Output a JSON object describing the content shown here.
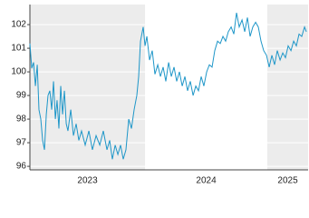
{
  "chart_data": {
    "type": "line",
    "x": [
      2023.059,
      2023.074,
      2023.089,
      2023.104,
      2023.119,
      2023.133,
      2023.148,
      2023.163,
      2023.178,
      2023.193,
      2023.207,
      2023.222,
      2023.237,
      2023.252,
      2023.267,
      2023.281,
      2023.296,
      2023.311,
      2023.326,
      2023.341,
      2023.356,
      2023.37,
      2023.393,
      2023.415,
      2023.437,
      2023.459,
      2023.481,
      2023.511,
      2023.541,
      2023.57,
      2023.6,
      2023.63,
      2023.659,
      2023.689,
      2023.711,
      2023.733,
      2023.756,
      2023.778,
      2023.8,
      2023.822,
      2023.844,
      2023.867,
      2023.889,
      2023.911,
      2023.933,
      2023.948,
      2023.963,
      2023.985,
      2024.0,
      2024.015,
      2024.037,
      2024.059,
      2024.081,
      2024.104,
      2024.126,
      2024.148,
      2024.17,
      2024.193,
      2024.215,
      2024.237,
      2024.259,
      2024.281,
      2024.304,
      2024.326,
      2024.348,
      2024.37,
      2024.393,
      2024.415,
      2024.437,
      2024.459,
      2024.481,
      2024.504,
      2024.526,
      2024.548,
      2024.57,
      2024.593,
      2024.615,
      2024.637,
      2024.659,
      2024.681,
      2024.704,
      2024.726,
      2024.748,
      2024.77,
      2024.793,
      2024.815,
      2024.837,
      2024.859,
      2024.881,
      2024.904,
      2024.926,
      2024.948,
      2024.97,
      2024.993,
      2025.015,
      2025.037,
      2025.059,
      2025.081,
      2025.104,
      2025.126,
      2025.148,
      2025.17,
      2025.193,
      2025.215,
      2025.237,
      2025.259,
      2025.281,
      2025.304,
      2025.319
    ],
    "series": [
      {
        "color": "#1e96c8",
        "values": [
          101.2,
          100.15,
          100.4,
          99.4,
          100.3,
          98.4,
          98.0,
          97.1,
          96.7,
          98.2,
          99.0,
          99.2,
          98.4,
          99.6,
          98.0,
          98.8,
          97.6,
          99.4,
          98.2,
          99.2,
          97.8,
          97.5,
          98.4,
          97.3,
          97.8,
          97.1,
          97.5,
          96.9,
          97.5,
          96.7,
          97.3,
          96.9,
          97.5,
          96.7,
          97.1,
          96.3,
          96.9,
          96.5,
          96.9,
          96.3,
          96.7,
          98.0,
          97.6,
          98.4,
          99.0,
          99.8,
          101.3,
          101.9,
          101.1,
          101.5,
          100.5,
          100.9,
          99.9,
          100.3,
          99.8,
          100.2,
          99.6,
          100.4,
          99.8,
          100.2,
          99.6,
          100.0,
          99.4,
          99.8,
          99.2,
          99.6,
          99.0,
          99.4,
          99.2,
          99.8,
          99.4,
          100.0,
          100.3,
          100.2,
          100.9,
          101.3,
          101.2,
          101.5,
          101.3,
          101.7,
          101.9,
          101.6,
          102.5,
          101.9,
          102.2,
          101.7,
          102.3,
          101.5,
          101.9,
          102.1,
          101.9,
          101.3,
          100.9,
          100.7,
          100.2,
          100.7,
          100.3,
          100.9,
          100.5,
          100.8,
          100.6,
          101.1,
          100.9,
          101.3,
          101.1,
          101.6,
          101.5,
          101.9,
          101.7
        ]
      }
    ],
    "xlim": [
      2023.059,
      2025.333
    ],
    "xticks": [
      {
        "value": 2023.5,
        "label": "2023"
      },
      {
        "value": 2024.5,
        "label": "2024"
      },
      {
        "value": 2025.5,
        "label": "2025"
      }
    ],
    "ylim": [
      95.85,
      102.85
    ],
    "yticks": [
      96,
      97,
      98,
      99,
      100,
      101,
      102
    ],
    "grid": true,
    "band_color": "#ececec"
  }
}
